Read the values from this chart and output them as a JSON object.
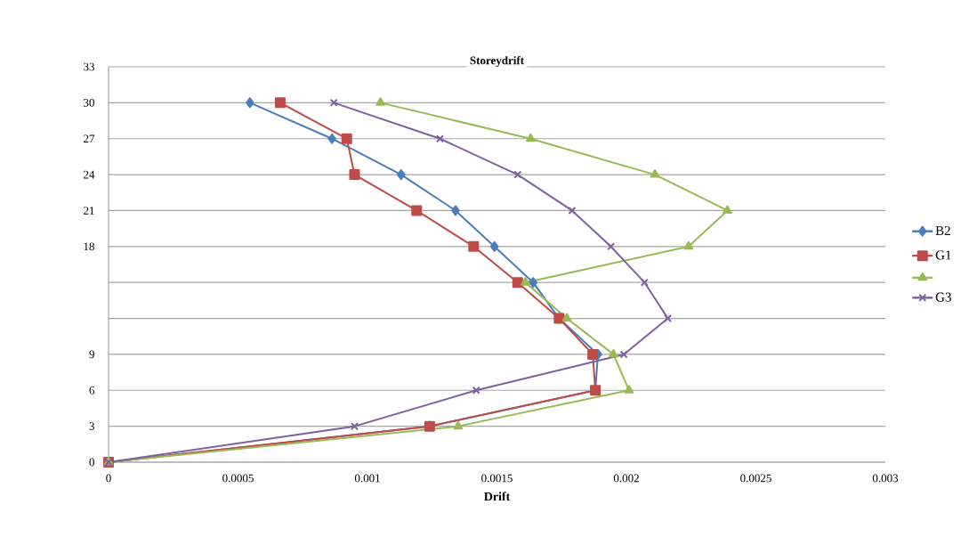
{
  "chart_data": {
    "type": "line",
    "title": "Storeydrift",
    "xlabel": "Drift",
    "xlim": [
      0,
      0.003
    ],
    "xticks": [
      0,
      0.0005,
      0.001,
      0.0015,
      0.002,
      0.0025,
      0.003
    ],
    "ylim": [
      0,
      33
    ],
    "yticks": [
      0,
      3,
      6,
      9,
      {
        "value": 12,
        "label": null
      },
      {
        "value": 15,
        "label": null
      },
      18,
      21,
      24,
      27,
      30,
      33
    ],
    "grid": "y",
    "legend": "right",
    "line_style": "solid",
    "series": [
      {
        "name": "B2",
        "color": "#4a7ebb",
        "marker": "diamond",
        "x": [
          0,
          0.00124,
          0.00188,
          0.00189,
          0.00174,
          0.00164,
          0.00149,
          0.00134,
          0.00113,
          0.000863,
          0.000546
        ],
        "values": [
          0,
          3,
          6,
          9,
          12,
          15,
          18,
          21,
          24,
          27,
          30
        ]
      },
      {
        "name": "G1",
        "color": "#be4b48",
        "marker": "square",
        "x": [
          0,
          0.00124,
          0.00188,
          0.00187,
          0.00174,
          0.00158,
          0.00141,
          0.00119,
          0.00095,
          0.00092,
          0.000663
        ],
        "values": [
          0,
          3,
          6,
          9,
          12,
          15,
          18,
          21,
          24,
          27,
          30
        ]
      },
      {
        "color": "#98b954",
        "marker": "triangle",
        "x": [
          0,
          0.00135,
          0.00201,
          0.00195,
          0.00177,
          0.00161,
          0.00224,
          0.00239,
          0.00211,
          0.00163,
          0.00105
        ],
        "values": [
          0,
          3,
          6,
          9,
          12,
          15,
          18,
          21,
          24,
          27,
          30
        ]
      },
      {
        "name": "G3",
        "color": "#7d60a0",
        "marker": "cross",
        "x": [
          0,
          0.00095,
          0.00142,
          0.00199,
          0.00216,
          0.00207,
          0.00194,
          0.00179,
          0.00158,
          0.00128,
          0.00087
        ],
        "values": [
          0,
          3,
          6,
          9,
          12,
          15,
          18,
          21,
          24,
          27,
          30
        ]
      }
    ]
  }
}
